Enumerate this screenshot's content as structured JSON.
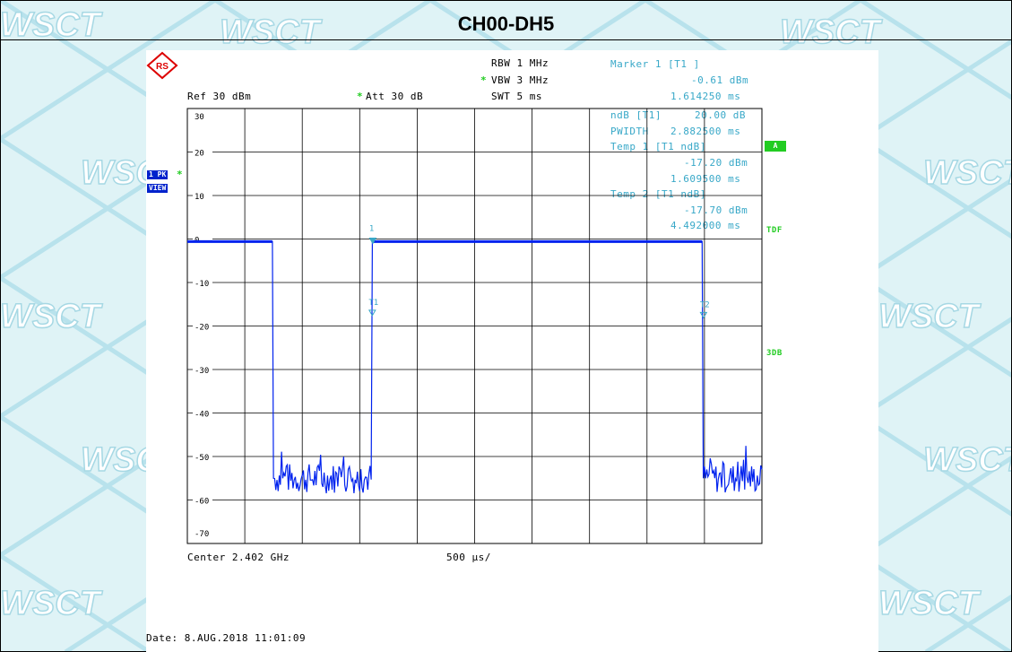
{
  "title": "CH00-DH5",
  "watermark": "WSCT",
  "logo_text": "RS",
  "header": {
    "rbw": "RBW 1 MHz",
    "vbw": "VBW 3 MHz",
    "swt": "SWT 5 ms",
    "ref": "Ref   30 dBm",
    "att": "Att   30 dB",
    "star": "*"
  },
  "markers": {
    "m1_title": "Marker 1 [T1 ]",
    "m1_level": "-0.61 dBm",
    "m1_time": "1.614250 ms",
    "ndb_label": "ndB [T1]",
    "ndb_value": "20.00 dB",
    "pwidth_label": "PWIDTH",
    "pwidth_value": "2.882500 ms",
    "temp1_title": "Temp 1 [T1 ndB]",
    "temp1_level": "-17.20 dBm",
    "temp1_time": "1.609500 ms",
    "temp2_title": "Temp 2 [T1 ndB]",
    "temp2_level": "-17.70 dBm",
    "temp2_time": "4.492000 ms"
  },
  "side": {
    "pk": "1 PK",
    "view": "VIEW",
    "a": "A",
    "tdf": "TDF",
    "db3": "3DB"
  },
  "footer": {
    "center": "Center 2.402 GHz",
    "span": "500 µs/",
    "date": "Date: 8.AUG.2018  11:01:09"
  },
  "colors": {
    "trace": "#0022ee",
    "marker": "#38a8c8",
    "status_green": "#22cc22",
    "background": "#dff3f6"
  },
  "chart_data": {
    "type": "line",
    "x_unit": "ms",
    "y_unit": "dBm",
    "xlim": [
      0,
      5
    ],
    "ylim": [
      -70,
      30
    ],
    "yticks": [
      30,
      20,
      10,
      0,
      -10,
      -20,
      -30,
      -40,
      -50,
      -60,
      -70
    ],
    "grid": true,
    "marker_labels": [
      "1",
      "T1",
      "T2"
    ],
    "series": [
      {
        "x": [
          0,
          0.74,
          0.75,
          1.0,
          1.25,
          1.6,
          1.61,
          2.5,
          3.5,
          4.48,
          4.49,
          4.75,
          5.0
        ],
        "y": [
          -0.6,
          -0.6,
          -55,
          -54,
          -55,
          -55,
          -0.61,
          -0.6,
          -0.6,
          -0.6,
          -55,
          -54,
          -55
        ]
      }
    ],
    "markers": [
      {
        "name": "1",
        "x": 1.614,
        "y": -0.61
      },
      {
        "name": "T1",
        "x": 1.6095,
        "y": -17.2
      },
      {
        "name": "T2",
        "x": 4.492,
        "y": -17.7
      }
    ]
  }
}
